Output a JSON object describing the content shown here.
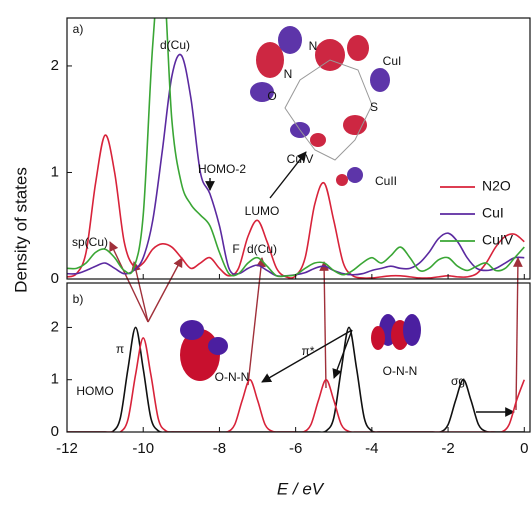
{
  "chart_data": [
    {
      "type": "line",
      "ylabel": "Density of states",
      "legend": "right",
      "xlim": [
        -12,
        0.15
      ],
      "ylim": [
        0,
        2.45
      ],
      "yticks": [
        0,
        1,
        2
      ],
      "x": [
        -12,
        -11.75,
        -11.5,
        -11.25,
        -11,
        -10.75,
        -10.5,
        -10.25,
        -10,
        -9.75,
        -9.5,
        -9.25,
        -9,
        -8.75,
        -8.5,
        -8.25,
        -8,
        -7.75,
        -7.5,
        -7.25,
        -7,
        -6.75,
        -6.5,
        -6.25,
        -6,
        -5.75,
        -5.5,
        -5.25,
        -5,
        -4.75,
        -4.5,
        -4.25,
        -4,
        -3.75,
        -3.5,
        -3.25,
        -3,
        -2.75,
        -2.5,
        -2.25,
        -2,
        -1.75,
        -1.5,
        -1.25,
        -1,
        -0.75,
        -0.5,
        -0.25,
        0
      ],
      "series": [
        {
          "name": "N2O",
          "color": "#d8233a",
          "values": [
            0.02,
            0.05,
            0.25,
            0.9,
            1.35,
            1.0,
            0.35,
            0.12,
            0.15,
            0.28,
            0.33,
            0.3,
            0.2,
            0.1,
            0.15,
            0.2,
            0.1,
            0.03,
            0.1,
            0.4,
            0.55,
            0.35,
            0.1,
            0.02,
            0.03,
            0.2,
            0.7,
            0.9,
            0.55,
            0.15,
            0.03,
            0.01,
            0.01,
            0.02,
            0.03,
            0.03,
            0.02,
            0.01,
            0.01,
            0.02,
            0.03,
            0.02,
            0.02,
            0.05,
            0.15,
            0.3,
            0.4,
            0.42,
            0.35
          ]
        },
        {
          "name": "CuI",
          "color": "#5b2aa0",
          "values": [
            0.05,
            0.05,
            0.08,
            0.12,
            0.15,
            0.1,
            0.05,
            0.08,
            0.2,
            0.55,
            1.2,
            1.9,
            2.1,
            1.7,
            1.0,
            0.8,
            0.5,
            0.1,
            0.05,
            0.1,
            0.13,
            0.08,
            0.03,
            0.03,
            0.04,
            0.06,
            0.1,
            0.12,
            0.08,
            0.05,
            0.04,
            0.05,
            0.08,
            0.1,
            0.12,
            0.1,
            0.1,
            0.15,
            0.25,
            0.38,
            0.43,
            0.35,
            0.2,
            0.1,
            0.08,
            0.1,
            0.15,
            0.2,
            0.2
          ]
        },
        {
          "name": "CuIV",
          "color": "#3aa635",
          "values": [
            0.1,
            0.1,
            0.15,
            0.25,
            0.28,
            0.2,
            0.08,
            0.1,
            0.6,
            2.2,
            3.0,
            1.5,
            0.9,
            0.7,
            0.6,
            0.5,
            0.25,
            0.05,
            0.05,
            0.15,
            0.2,
            0.12,
            0.03,
            0.03,
            0.04,
            0.1,
            0.15,
            0.15,
            0.08,
            0.04,
            0.08,
            0.15,
            0.2,
            0.15,
            0.22,
            0.3,
            0.2,
            0.08,
            0.1,
            0.18,
            0.2,
            0.12,
            0.08,
            0.12,
            0.15,
            0.08,
            0.1,
            0.2,
            0.3
          ]
        }
      ],
      "annotations": [
        "a)",
        "d(Cu)",
        "HOMO-2",
        "sp(Cu)",
        "F",
        "d(Cu)",
        "LUMO",
        "N",
        "N",
        "O",
        "S",
        "CuI",
        "CuIV",
        "CuII"
      ]
    },
    {
      "type": "line",
      "xlabel": "E / eV",
      "xlim": [
        -12,
        0.15
      ],
      "ylim": [
        0,
        2.85
      ],
      "yticks": [
        0,
        1,
        2
      ],
      "xticks": [
        -12,
        -10,
        -8,
        -6,
        -4,
        -2,
        0
      ],
      "x": [
        -12,
        -11.8,
        -11.6,
        -11.4,
        -11.2,
        -11,
        -10.8,
        -10.6,
        -10.4,
        -10.2,
        -10,
        -9.8,
        -9.6,
        -9.4,
        -9.2,
        -9,
        -8.8,
        -8.6,
        -8.4,
        -8.2,
        -8,
        -7.8,
        -7.6,
        -7.4,
        -7.2,
        -7,
        -6.8,
        -6.6,
        -6.4,
        -6.2,
        -6,
        -5.8,
        -5.6,
        -5.4,
        -5.2,
        -5,
        -4.8,
        -4.6,
        -4.4,
        -4.2,
        -4,
        -3.8,
        -3.6,
        -3.4,
        -3.2,
        -3,
        -2.8,
        -2.6,
        -2.4,
        -2.2,
        -2,
        -1.8,
        -1.6,
        -1.4,
        -1.2,
        -1,
        -0.8,
        -0.6,
        -0.4,
        -0.2,
        0
      ],
      "series": [
        {
          "color": "#111111",
          "values": [
            0,
            0,
            0,
            0,
            0,
            0,
            0.01,
            0.27,
            1.21,
            2.0,
            1.21,
            0.27,
            0.02,
            0,
            0,
            0,
            0,
            0,
            0,
            0,
            0,
            0,
            0,
            0,
            0,
            0,
            0,
            0,
            0,
            0,
            0,
            0,
            0,
            0,
            0.02,
            0.27,
            1.21,
            2.0,
            1.21,
            0.27,
            0.02,
            0,
            0,
            0,
            0,
            0,
            0,
            0,
            0,
            0,
            0.14,
            0.61,
            1.0,
            0.61,
            0.14,
            0.01,
            0,
            0,
            0,
            0,
            0
          ]
        },
        {
          "color": "#d8233a",
          "values": [
            0,
            0,
            0,
            0,
            0,
            0,
            0,
            0,
            0.24,
            1.1,
            1.8,
            1.1,
            0.24,
            0.02,
            0,
            0,
            0,
            0,
            0,
            0,
            0,
            0,
            0.14,
            0.61,
            1,
            0.61,
            0.14,
            0.01,
            0,
            0,
            0,
            0,
            0.14,
            0.61,
            1,
            0.61,
            0.14,
            0.01,
            0,
            0,
            0,
            0,
            0,
            0,
            0,
            0,
            0,
            0,
            0,
            0,
            0,
            0,
            0,
            0,
            0,
            0,
            0,
            0,
            0.14,
            0.61,
            1
          ]
        }
      ],
      "annotations": [
        "b)",
        "π",
        "HOMO",
        "π*",
        "σg",
        "O-N-N",
        "O-N-N"
      ]
    }
  ]
}
